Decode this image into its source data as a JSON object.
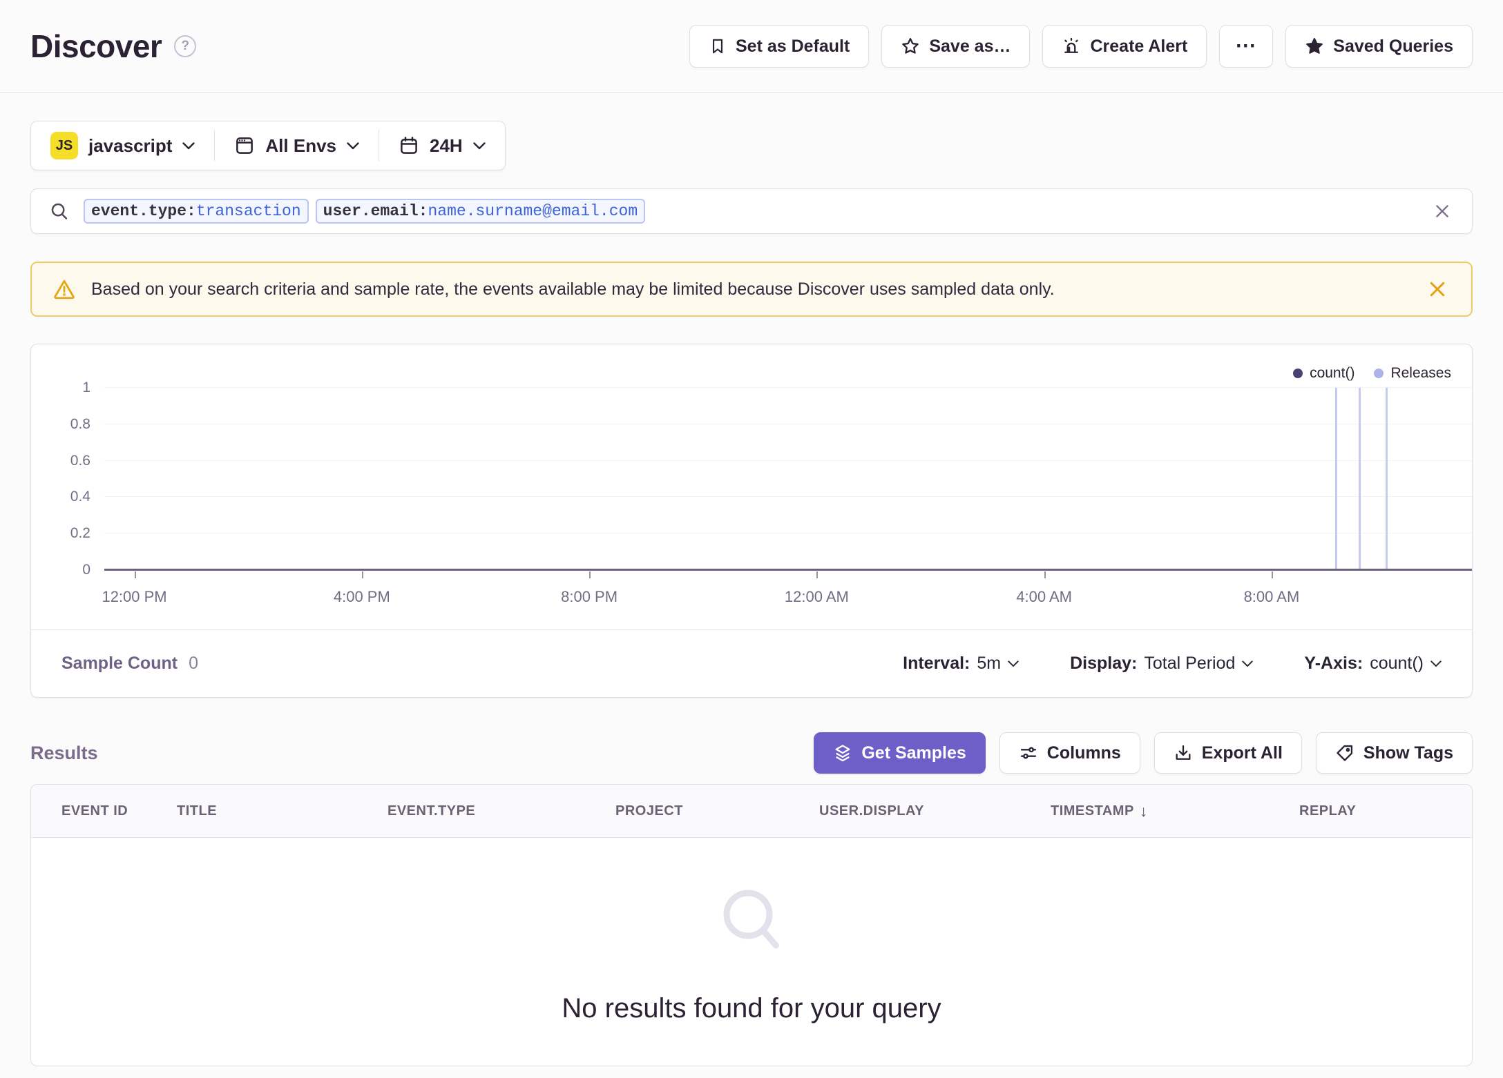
{
  "header": {
    "title": "Discover",
    "help_icon": "?",
    "actions": [
      {
        "label": "Set as Default",
        "icon": "bookmark-icon"
      },
      {
        "label": "Save as…",
        "icon": "star-outline-icon"
      },
      {
        "label": "Create Alert",
        "icon": "siren-icon"
      },
      {
        "label": "⋯",
        "icon": "more-ellipsis"
      },
      {
        "label": "Saved Queries",
        "icon": "star-filled-icon"
      }
    ]
  },
  "filters": {
    "project": {
      "badge": "JS",
      "label": "javascript"
    },
    "environment": {
      "label": "All Envs"
    },
    "time": {
      "label": "24H"
    }
  },
  "search": {
    "tokens": [
      {
        "key": "event.type:",
        "value": "transaction"
      },
      {
        "key": "user.email:",
        "value": "name.surname@email.com"
      }
    ]
  },
  "banner": {
    "text": "Based on your search criteria and sample rate, the events available may be limited because Discover uses sampled data only."
  },
  "chart_data": {
    "type": "line",
    "title": "",
    "legend": [
      {
        "label": "count()",
        "color": "#4A4273"
      },
      {
        "label": "Releases",
        "color": "#ACB3EA"
      }
    ],
    "legend_position": "top-right",
    "series": [
      {
        "name": "count()",
        "values": [],
        "note": "no events in period, flat at 0"
      }
    ],
    "release_lines_pct": [
      90.0,
      91.7,
      93.7
    ],
    "x_ticks": [
      "12:00 PM",
      "4:00 PM",
      "8:00 PM",
      "12:00 AM",
      "4:00 AM",
      "8:00 AM"
    ],
    "x_tick_start_pct": 2.2,
    "x_tick_step_pct": 16.63,
    "y_ticks": [
      0,
      0.2,
      0.4,
      0.6,
      0.8,
      1
    ],
    "ylim": [
      0,
      1
    ],
    "grid": true
  },
  "chart_footer": {
    "sample_count_label": "Sample Count",
    "sample_count_value": "0",
    "interval_label": "Interval:",
    "interval_value": "5m",
    "display_label": "Display:",
    "display_value": "Total Period",
    "yaxis_label": "Y-Axis:",
    "yaxis_value": "count()"
  },
  "results": {
    "heading": "Results",
    "buttons": [
      {
        "label": "Get Samples",
        "icon": "layers-icon",
        "primary": true
      },
      {
        "label": "Columns",
        "icon": "sliders-icon"
      },
      {
        "label": "Export All",
        "icon": "download-icon"
      },
      {
        "label": "Show Tags",
        "icon": "tag-icon"
      }
    ],
    "table": {
      "columns": [
        "EVENT ID",
        "TITLE",
        "EVENT.TYPE",
        "PROJECT",
        "USER.DISPLAY",
        "TIMESTAMP",
        "REPLAY"
      ],
      "sorted_column": "TIMESTAMP",
      "sort_direction": "desc",
      "sort_arrow": "↓",
      "rows": [],
      "empty_text": "No results found for your query"
    }
  }
}
